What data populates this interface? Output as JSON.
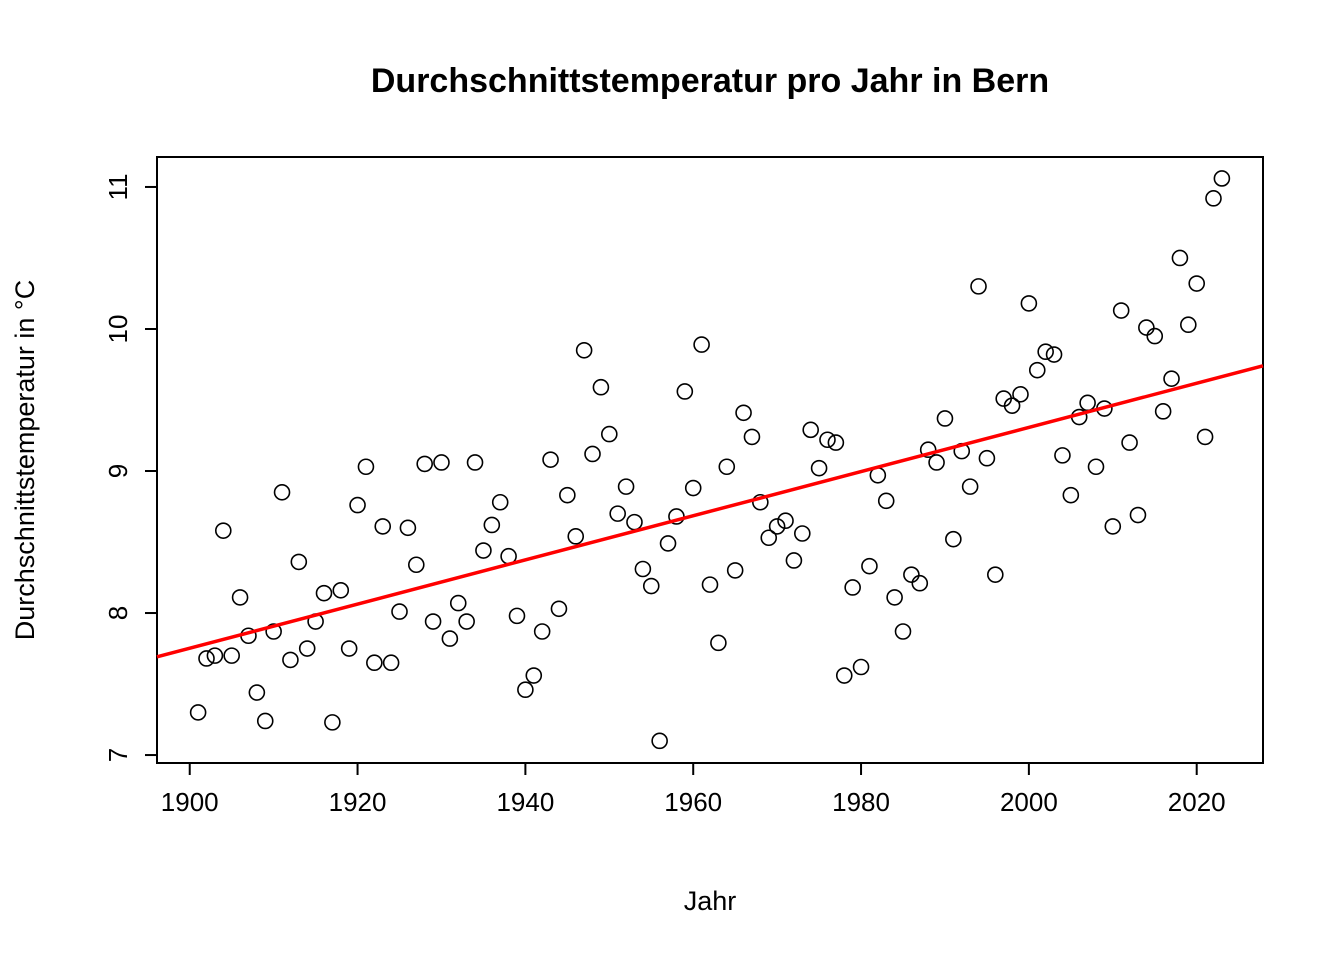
{
  "chart_data": {
    "type": "scatter",
    "title": "Durchschnittstemperatur pro Jahr in Bern",
    "xlabel": "Jahr",
    "ylabel": "Durchschnittstemperatur in °C",
    "xlim": [
      1896.1,
      2027.9
    ],
    "ylim": [
      6.944,
      11.211
    ],
    "xticks": [
      1900,
      1920,
      1940,
      1960,
      1980,
      2000,
      2020
    ],
    "yticks": [
      7,
      8,
      9,
      10,
      11
    ],
    "grid": false,
    "point_color": "#000000",
    "line_color": "#ff0000",
    "regression": {
      "intercept_at_1900": 7.752,
      "slope_per_year": 0.01555
    },
    "x": [
      1901,
      1902,
      1903,
      1904,
      1905,
      1906,
      1907,
      1908,
      1909,
      1910,
      1911,
      1912,
      1913,
      1914,
      1915,
      1916,
      1917,
      1918,
      1919,
      1920,
      1921,
      1922,
      1923,
      1924,
      1925,
      1926,
      1927,
      1928,
      1929,
      1930,
      1931,
      1932,
      1933,
      1934,
      1935,
      1936,
      1937,
      1938,
      1939,
      1940,
      1941,
      1942,
      1943,
      1944,
      1945,
      1946,
      1947,
      1948,
      1949,
      1950,
      1951,
      1952,
      1953,
      1954,
      1955,
      1956,
      1957,
      1958,
      1959,
      1960,
      1961,
      1962,
      1963,
      1964,
      1965,
      1966,
      1967,
      1968,
      1969,
      1970,
      1971,
      1972,
      1973,
      1974,
      1975,
      1976,
      1977,
      1978,
      1979,
      1980,
      1981,
      1982,
      1983,
      1984,
      1985,
      1986,
      1987,
      1988,
      1989,
      1990,
      1991,
      1992,
      1993,
      1994,
      1995,
      1996,
      1997,
      1998,
      1999,
      2000,
      2001,
      2002,
      2003,
      2004,
      2005,
      2006,
      2007,
      2008,
      2009,
      2010,
      2011,
      2012,
      2013,
      2014,
      2015,
      2016,
      2017,
      2018,
      2019,
      2020,
      2021,
      2022,
      2023
    ],
    "y": [
      7.3,
      7.68,
      7.7,
      8.58,
      7.7,
      8.11,
      7.84,
      7.44,
      7.24,
      7.87,
      8.85,
      7.67,
      8.36,
      7.75,
      7.94,
      8.14,
      7.23,
      8.16,
      7.75,
      8.76,
      9.03,
      7.65,
      8.61,
      7.65,
      8.01,
      8.6,
      8.34,
      9.05,
      7.94,
      9.06,
      7.82,
      8.07,
      7.94,
      9.06,
      8.44,
      8.62,
      8.78,
      8.4,
      7.98,
      7.46,
      7.56,
      7.87,
      9.08,
      8.03,
      8.83,
      8.54,
      9.85,
      9.12,
      9.59,
      9.26,
      8.7,
      8.89,
      8.64,
      8.31,
      8.19,
      7.1,
      8.49,
      8.68,
      9.56,
      8.88,
      9.89,
      8.2,
      7.79,
      9.03,
      8.3,
      9.41,
      9.24,
      8.78,
      8.53,
      8.61,
      8.65,
      8.37,
      8.56,
      9.29,
      9.02,
      9.22,
      9.2,
      7.56,
      8.18,
      7.62,
      8.33,
      8.97,
      8.79,
      8.11,
      7.87,
      8.27,
      8.21,
      9.15,
      9.06,
      9.37,
      8.52,
      9.14,
      8.89,
      10.3,
      9.09,
      8.27,
      9.51,
      9.46,
      9.54,
      10.18,
      9.71,
      9.84,
      9.82,
      9.11,
      8.83,
      9.38,
      9.48,
      9.03,
      9.44,
      8.61,
      10.13,
      9.2,
      8.69,
      10.01,
      9.95,
      9.42,
      9.65,
      10.5,
      10.03,
      10.32,
      9.24,
      10.92,
      11.06
    ]
  }
}
